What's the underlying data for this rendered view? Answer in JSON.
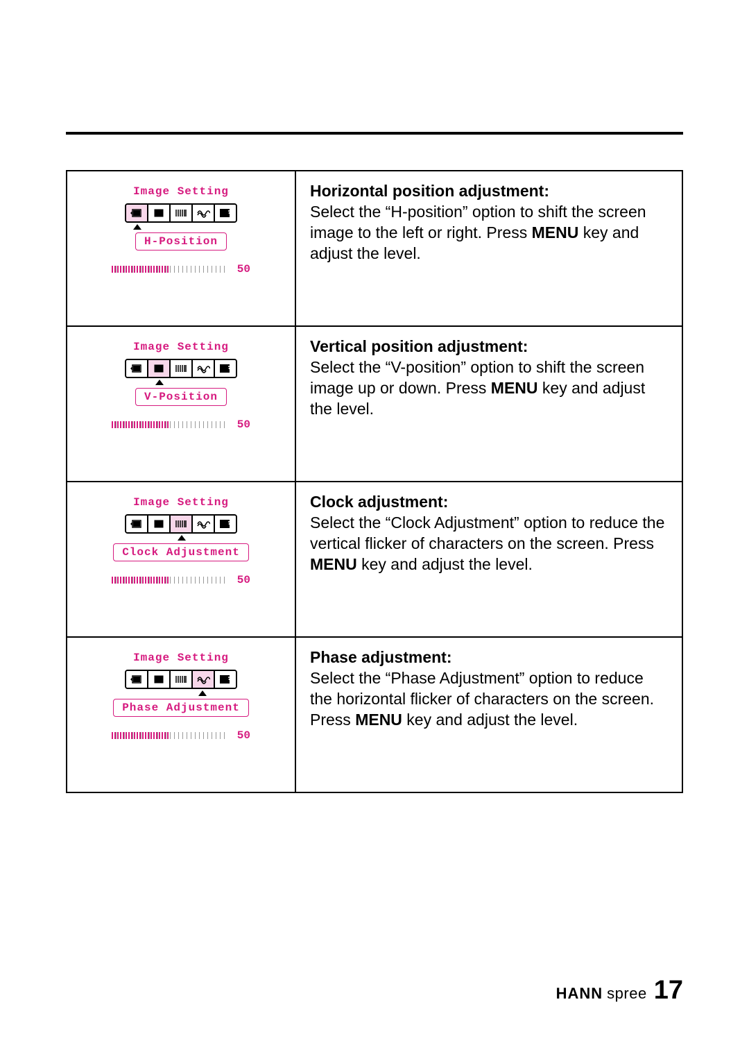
{
  "page_number": "17",
  "brand": {
    "bold": "HANN",
    "light": "spree"
  },
  "osd_header": "Image Setting",
  "slider_value": "50",
  "accent_color": "#d61a7f",
  "rows": [
    {
      "setting_label": "H-Position",
      "selected_icon_index": 0,
      "title": "Horizontal position adjustment:",
      "desc_pre": "Select the “H-position” option to shift the screen image to the left or right. Press ",
      "desc_bold": "MENU",
      "desc_post": " key and adjust the level."
    },
    {
      "setting_label": "V-Position",
      "selected_icon_index": 1,
      "title": "Vertical position adjustment:",
      "desc_pre": "Select the “V-position” option to shift the screen image up or down. Press ",
      "desc_bold": "MENU",
      "desc_post": " key and adjust the level."
    },
    {
      "setting_label": "Clock Adjustment",
      "selected_icon_index": 2,
      "title": "Clock adjustment:",
      "desc_pre": "Select the “Clock Adjustment” option to reduce the vertical flicker of characters on the screen. Press ",
      "desc_bold": "MENU",
      "desc_post": " key and adjust the level."
    },
    {
      "setting_label": "Phase Adjustment",
      "selected_icon_index": 3,
      "title": "Phase adjustment:",
      "desc_pre": "Select the “Phase Adjustment” option to reduce the horizontal flicker of characters on the screen. Press ",
      "desc_bold": "MENU",
      "desc_post": " key and adjust the level."
    }
  ],
  "icons": [
    "h-pos-icon",
    "v-pos-icon",
    "clock-icon",
    "phase-icon",
    "exit-icon"
  ]
}
